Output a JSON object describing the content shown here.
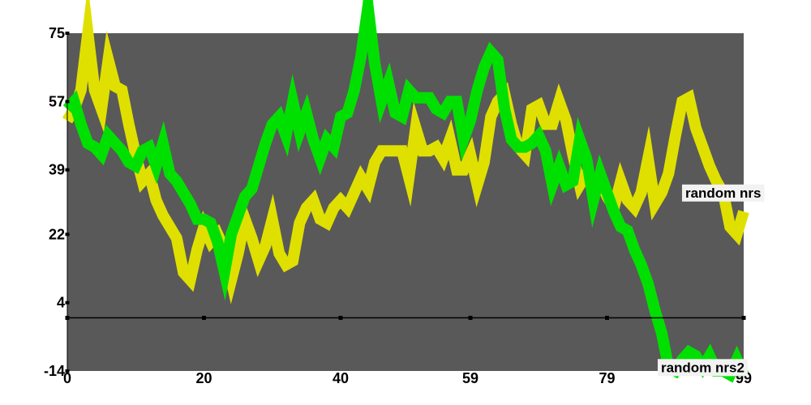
{
  "chart_data": {
    "type": "line",
    "title": "",
    "xlabel": "",
    "ylabel": "",
    "xlim": [
      0,
      99
    ],
    "ylim": [
      -14,
      75
    ],
    "x_ticks": [
      "0",
      "20",
      "40",
      "59",
      "79",
      "99"
    ],
    "x_tick_values": [
      0,
      20,
      40,
      59,
      79,
      99
    ],
    "y_ticks": [
      "-14",
      "4",
      "22",
      "39",
      "57",
      "75"
    ],
    "y_tick_values": [
      -14,
      4,
      22,
      39,
      57,
      75
    ],
    "grid": false,
    "legend": "none",
    "plot_background": "#595959",
    "series": [
      {
        "name": "random nrs",
        "color": "#e0e000",
        "values": [
          52,
          55,
          60,
          75,
          60,
          55,
          68,
          61,
          60,
          51,
          43,
          36,
          38,
          31,
          27,
          24,
          21,
          12,
          10,
          18,
          24,
          20,
          22,
          18,
          10,
          17,
          26,
          21,
          15,
          19,
          26,
          17,
          14,
          15,
          25,
          29,
          31,
          26,
          25,
          29,
          31,
          29,
          33,
          37,
          34,
          41,
          44,
          44,
          44,
          44,
          37,
          50,
          44,
          44,
          45,
          42,
          47,
          39,
          39,
          43,
          35,
          41,
          53,
          57,
          59,
          51,
          45,
          43,
          55,
          56,
          51,
          51,
          57,
          52,
          43,
          35,
          38,
          33,
          36,
          32,
          29,
          36,
          31,
          29,
          33,
          42,
          30,
          33,
          38,
          48,
          57,
          58,
          50,
          45,
          40,
          36,
          33,
          24,
          22,
          28
        ],
        "label_at_index": 96
      },
      {
        "name": "random nrs2",
        "color": "#00e000",
        "values": [
          55,
          57,
          51,
          46,
          45,
          43,
          48,
          46,
          44,
          41,
          40,
          44,
          45,
          40,
          46,
          38,
          36,
          33,
          30,
          26,
          26,
          25,
          20,
          12,
          22,
          27,
          32,
          34,
          40,
          46,
          51,
          53,
          48,
          57,
          49,
          54,
          47,
          42,
          47,
          45,
          53,
          54,
          60,
          69,
          82,
          67,
          57,
          62,
          54,
          53,
          60,
          58,
          58,
          58,
          55,
          54,
          57,
          57,
          47,
          52,
          60,
          66,
          70,
          68,
          55,
          47,
          45,
          45,
          46,
          48,
          44,
          35,
          40,
          35,
          36,
          47,
          42,
          31,
          38,
          33,
          28,
          24,
          23,
          18,
          14,
          9,
          2,
          -4,
          -13,
          -14,
          -11,
          -9,
          -10,
          -13,
          -10,
          -14,
          -14,
          -15,
          -11,
          -15
        ],
        "label_at_index": 93
      }
    ]
  }
}
